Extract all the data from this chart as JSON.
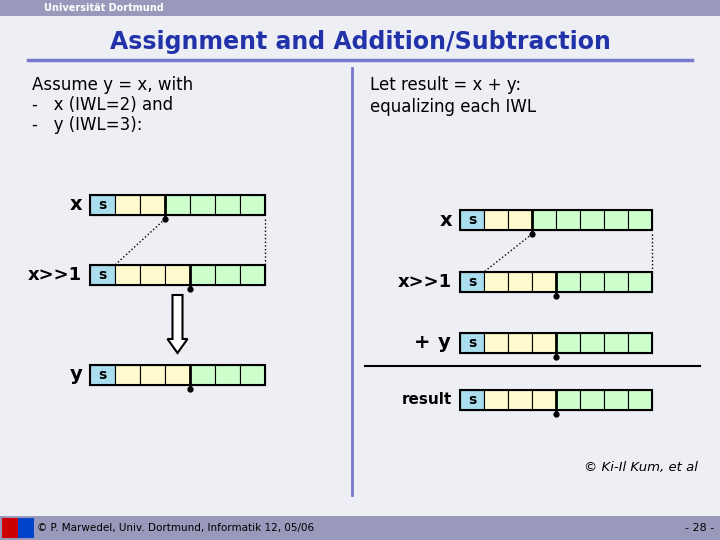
{
  "title": "Assignment and Addition/Subtraction",
  "title_color": "#2233aa",
  "bg_color": "#eeeef5",
  "header_bg": "#9999bb",
  "header_text": "Universität Dortmund",
  "footer_text": "© P. Marwedel, Univ. Dortmund, Informatik 12, 05/06",
  "footer_right": "- 28 -",
  "copyright_text": "© Ki-Il Kum, et al",
  "left_text_line1": "Assume y = x, with",
  "left_text_line2": "-   x (IWL=2) and",
  "left_text_line3": "-   y (IWL=3):",
  "right_text_line1": "Let result = x + y:",
  "right_text_line2": "equalizing each IWL",
  "color_sign": "#aaddee",
  "color_iwl": "#fffacd",
  "color_frac": "#ccffcc",
  "color_border": "#000000",
  "divider_color": "#7777cc",
  "title_fontsize": 17,
  "text_fontsize": 12,
  "label_fontsize": 13
}
